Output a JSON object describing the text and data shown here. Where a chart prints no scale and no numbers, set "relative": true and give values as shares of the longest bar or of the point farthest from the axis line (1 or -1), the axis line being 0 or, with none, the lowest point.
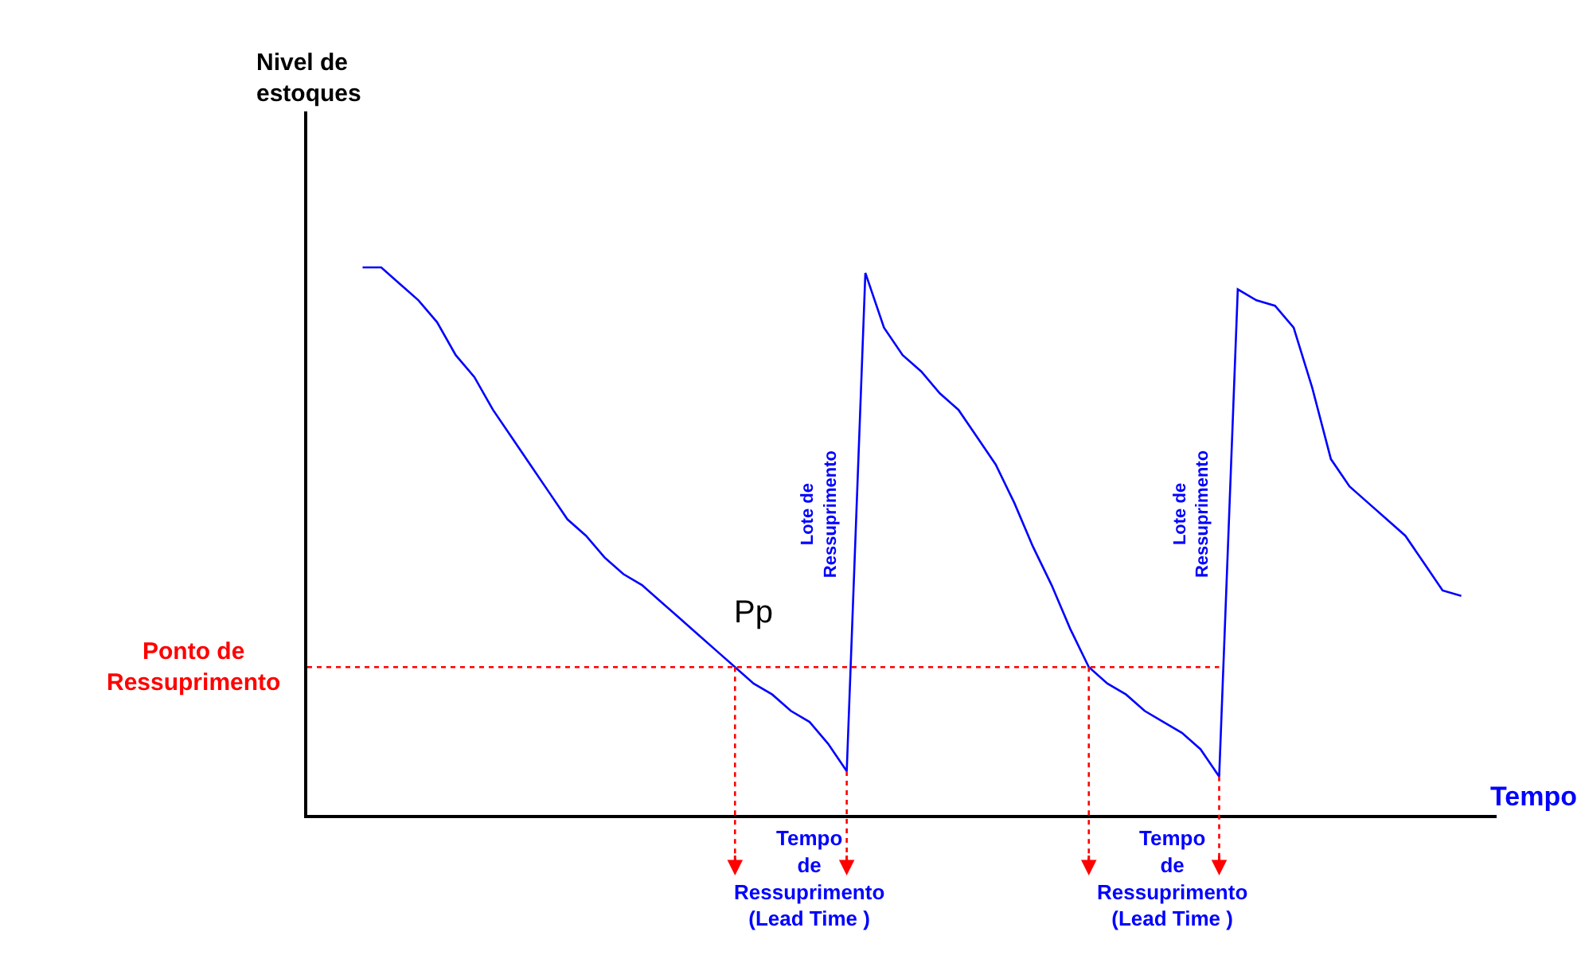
{
  "chart_data": {
    "type": "line",
    "relative": true,
    "xlabel": "Tempo",
    "categories": [
      null,
      null,
      null,
      null,
      null,
      null,
      null,
      null,
      null,
      null,
      null,
      null,
      null,
      null,
      null,
      null,
      null,
      null,
      null,
      null,
      null,
      null,
      null,
      null,
      null,
      null,
      null,
      null,
      null,
      null,
      null,
      null,
      null,
      null,
      null,
      null,
      null,
      null,
      null,
      null,
      null,
      null,
      null,
      null,
      null,
      null,
      null,
      null,
      null,
      null,
      null,
      null,
      null,
      null,
      null,
      null,
      null,
      null,
      null,
      null
    ],
    "series": [
      {
        "color": "#0000ff",
        "values": [
          1.0,
          1.0,
          0.97,
          0.94,
          0.9,
          0.84,
          0.8,
          0.74,
          0.69,
          0.64,
          0.59,
          0.54,
          0.51,
          0.47,
          0.44,
          0.42,
          0.39,
          0.36,
          0.33,
          0.3,
          0.27,
          0.24,
          0.22,
          0.19,
          0.17,
          0.13,
          0.08,
          0.99,
          0.89,
          0.84,
          0.81,
          0.77,
          0.74,
          0.69,
          0.64,
          0.57,
          0.49,
          0.42,
          0.34,
          0.27,
          0.24,
          0.22,
          0.19,
          0.17,
          0.15,
          0.12,
          0.07,
          0.96,
          0.94,
          0.93,
          0.89,
          0.78,
          0.65,
          0.6,
          0.57,
          0.54,
          0.51,
          0.46,
          0.41,
          0.4
        ]
      }
    ],
    "ref_lines": [
      {
        "axis": "y",
        "value": 0.27,
        "label": "Ponto de\nRessuprimento",
        "color": "#ff0000",
        "line_style": "dotted"
      }
    ],
    "annotations": [
      "Nivel de\nestoques",
      "Pp",
      "Lote de\nRessuprimento",
      "Lote de\nRessuprimento",
      "Tempo\nde\nRessuprimento\n(Lead Time )",
      "Tempo\nde\nRessuprimento\n(Lead Time )"
    ]
  }
}
